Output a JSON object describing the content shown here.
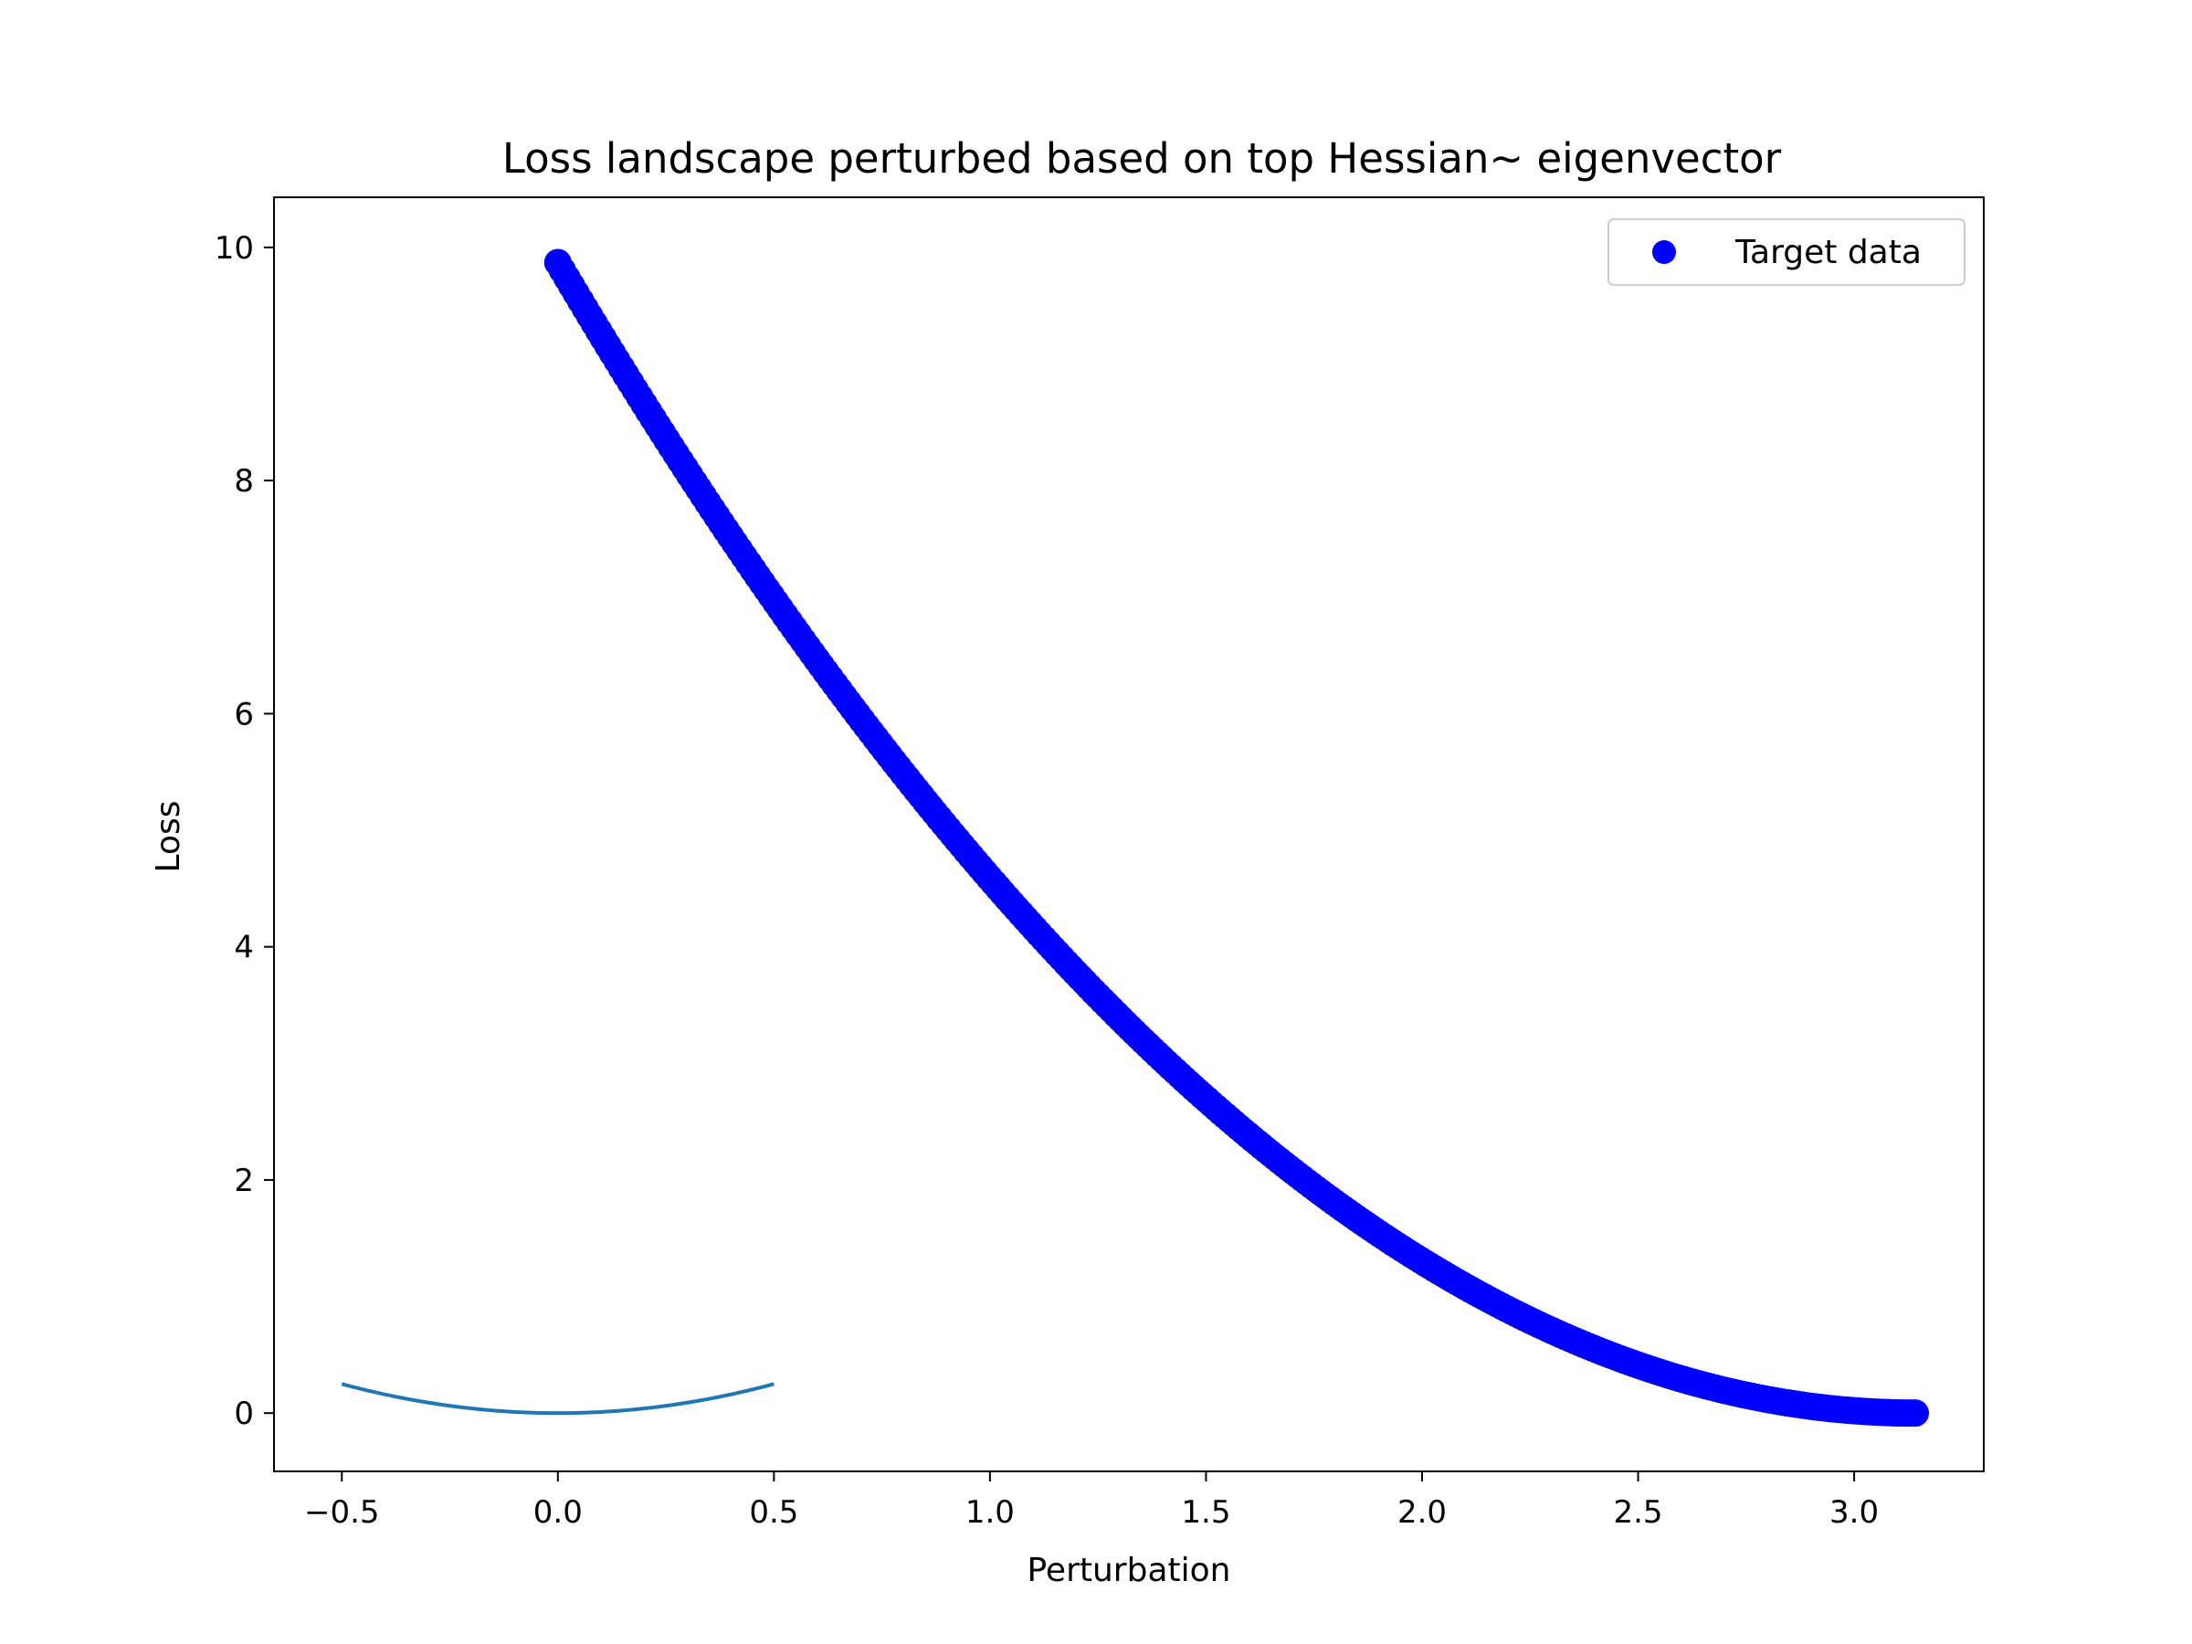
{
  "chart_data": {
    "type": "scatter",
    "title": "Loss landscape perturbed based on top Hessian~ eigenvector",
    "xlabel": "Perturbation",
    "ylabel": "Loss",
    "xlim": [
      -0.657,
      3.3
    ],
    "ylim": [
      -0.5,
      10.43
    ],
    "x_ticks": [
      -0.5,
      0.0,
      0.5,
      1.0,
      1.5,
      2.0,
      2.5,
      3.0
    ],
    "x_tick_labels": [
      "−0.5",
      "0.0",
      "0.5",
      "1.0",
      "1.5",
      "2.0",
      "2.5",
      "3.0"
    ],
    "y_ticks": [
      0,
      2,
      4,
      6,
      8,
      10
    ],
    "y_tick_labels": [
      "0",
      "2",
      "4",
      "6",
      "8",
      "10"
    ],
    "grid": false,
    "legend": {
      "placement": "top-right",
      "entries": [
        "Target data"
      ]
    },
    "series": [
      {
        "name": "Target data",
        "kind": "scatter",
        "color": "#0000ff",
        "function": "(x - pi)^2",
        "x_range": [
          0.0,
          3.14159
        ],
        "points": 300
      },
      {
        "kind": "line",
        "color": "#1f77b4",
        "function": "x^2",
        "x_range": [
          -0.5,
          0.5
        ],
        "points": 200
      }
    ]
  },
  "colors": {
    "axes": "#000000",
    "background": "#ffffff",
    "legend_border": "#cccccc"
  }
}
